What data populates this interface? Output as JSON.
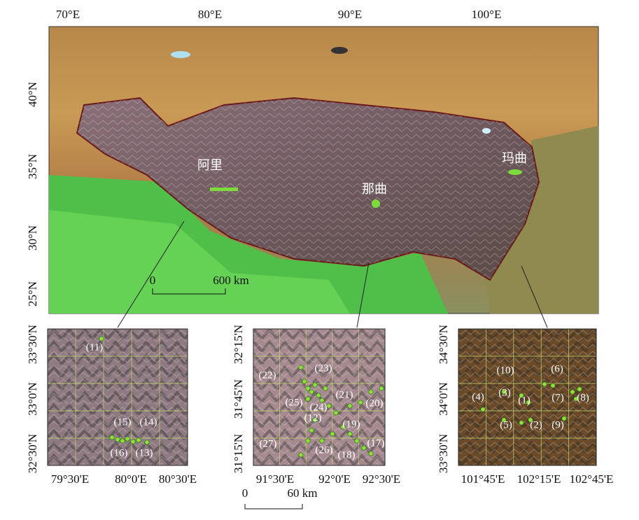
{
  "main_map": {
    "lon_labels": [
      "70°E",
      "80°E",
      "90°E",
      "100°E"
    ],
    "lat_labels": [
      "40°N",
      "35°N",
      "30°N",
      "25°N"
    ],
    "places": [
      "阿里",
      "那曲",
      "玛曲"
    ],
    "scale": [
      "0",
      "600 km"
    ]
  },
  "insets": [
    {
      "lat_labels": [
        "33°30'N",
        "33°0'N",
        "32°30'N"
      ],
      "lon_labels": [
        "79°30'E",
        "80°0'E",
        "80°30'E"
      ],
      "stations": [
        "(11)",
        "(15)",
        "(14)",
        "(16)",
        "(13)"
      ]
    },
    {
      "lat_labels": [
        "32°15'N",
        "31°45'N",
        "31°15'N"
      ],
      "lon_labels": [
        "91°30'E",
        "92°0'E",
        "92°30'E"
      ],
      "stations": [
        "(22)",
        "(23)",
        "(25)",
        "(24)",
        "(21)",
        "(20)",
        "(12)",
        "(19)",
        "(27)",
        "(26)",
        "(18)",
        "(17)"
      ],
      "scale": [
        "0",
        "60 km"
      ]
    },
    {
      "lat_labels": [
        "34°30'N",
        "34°0'N",
        "33°30'N"
      ],
      "lon_labels": [
        "101°45'E",
        "102°15'E",
        "102°45'E"
      ],
      "stations": [
        "(10)",
        "(6)",
        "(3)",
        "(4)",
        "(1)",
        "(7)",
        "(8)",
        "(5)",
        "(2)",
        "(9)"
      ]
    }
  ]
}
